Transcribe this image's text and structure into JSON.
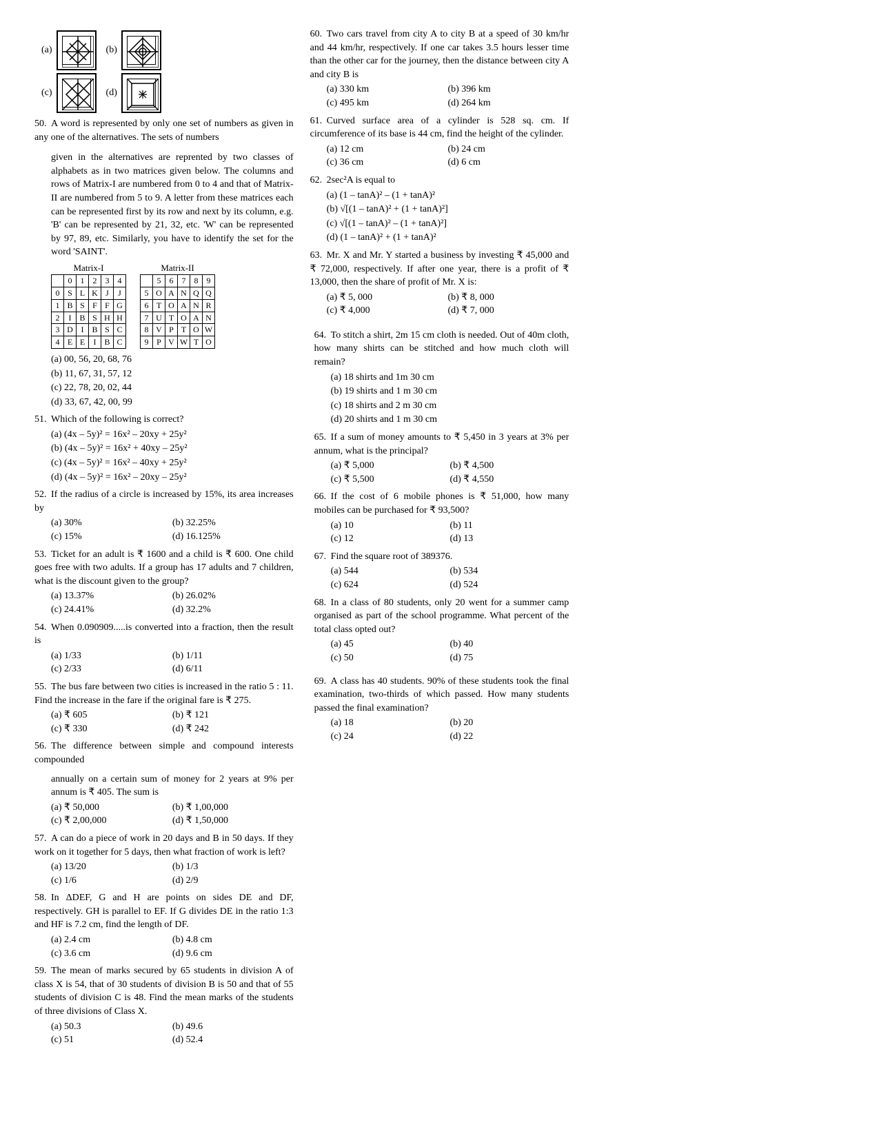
{
  "q_images": {
    "labels": [
      "(a)",
      "(b)",
      "(c)",
      "(d)"
    ]
  },
  "q50": {
    "num": "50.",
    "text1": "A word is represented by only one set of numbers as given in any one of the alternatives. The sets of numbers",
    "text2": "given in the alternatives are reprented by two classes of alphabets as in two matrices given below. The columns and rows of Matrix-I are numbered from 0 to 4 and that of Matrix-II are numbered from 5 to 9. A letter from these matrices each can be represented first by its row and next by its column, e.g. 'B' can be represented by 21, 32, etc. 'W' can be represented by 97, 89, etc. Similarly, you have to identify the set for the word 'SAINT'.",
    "m1_label": "Matrix-I",
    "m2_label": "Matrix-II",
    "m1": {
      "cols": [
        "0",
        "1",
        "2",
        "3",
        "4"
      ],
      "rows": [
        [
          "0",
          "S",
          "L",
          "K",
          "J",
          "J"
        ],
        [
          "1",
          "B",
          "S",
          "F",
          "F",
          "G"
        ],
        [
          "2",
          "I",
          "B",
          "S",
          "H",
          "H"
        ],
        [
          "3",
          "D",
          "I",
          "B",
          "S",
          "C"
        ],
        [
          "4",
          "E",
          "E",
          "I",
          "B",
          "C"
        ]
      ]
    },
    "m2": {
      "cols": [
        "5",
        "6",
        "7",
        "8",
        "9"
      ],
      "rows": [
        [
          "5",
          "O",
          "A",
          "N",
          "Q",
          "Q"
        ],
        [
          "6",
          "T",
          "O",
          "A",
          "N",
          "R"
        ],
        [
          "7",
          "U",
          "T",
          "O",
          "A",
          "N"
        ],
        [
          "8",
          "V",
          "P",
          "T",
          "O",
          "W"
        ],
        [
          "9",
          "P",
          "V",
          "W",
          "T",
          "O"
        ]
      ]
    },
    "opts": [
      "(a) 00, 56, 20, 68, 76",
      "(b) 11, 67, 31, 57, 12",
      "(c) 22, 78, 20, 02, 44",
      "(d) 33, 67, 42, 00, 99"
    ]
  },
  "q51": {
    "num": "51.",
    "text": "Which of the following is correct?",
    "opts": [
      "(a) (4x – 5y)² = 16x² – 20xy + 25y²",
      "(b) (4x – 5y)² = 16x² + 40xy – 25y²",
      "(c) (4x – 5y)² = 16x² – 40xy + 25y²",
      "(d) (4x – 5y)² = 16x² – 20xy – 25y²"
    ]
  },
  "q52": {
    "num": "52.",
    "text": "If the radius of a circle is increased by 15%, its area increases by",
    "a": "(a) 30%",
    "b": "(b) 32.25%",
    "c": "(c) 15%",
    "d": "(d) 16.125%"
  },
  "q53": {
    "num": "53.",
    "text": "Ticket for an adult is  ₹ 1600 and a child is ₹ 600. One child goes free with two adults. If a group has 17 adults and 7 children, what is the discount given  to the group?",
    "a": "(a) 13.37%",
    "b": "(b) 26.02%",
    "c": "(c) 24.41%",
    "d": "(d) 32.2%"
  },
  "q54": {
    "num": "54.",
    "text": "When 0.090909.....is converted into a fraction, then the result is",
    "a": "(a) 1/33",
    "b": "(b) 1/11",
    "c": "(c) 2/33",
    "d": "(d) 6/11"
  },
  "q55": {
    "num": "55.",
    "text": "The bus fare between two cities is increased in the ratio 5 : 11. Find the increase in the fare if the original fare is   ₹ 275.",
    "a": "(a) ₹ 605",
    "b": "(b) ₹ 121",
    "c": "(c) ₹ 330",
    "d": "(d) ₹ 242"
  },
  "q56": {
    "num": "56.",
    "text1": "The difference between simple and compound interests compounded",
    "text2": "annually on a certain sum of money for 2 years at 9% per annum is ₹ 405. The sum is",
    "a": "(a) ₹ 50,000",
    "b": "(b) ₹ 1,00,000",
    "c": "(c) ₹ 2,00,000",
    "d": "(d) ₹ 1,50,000"
  },
  "q57": {
    "num": "57.",
    "text": "A can do a piece of work in 20 days and B in 50 days. If they work on it together for 5 days, then what fraction of work is left?",
    "a": "(a) 13/20",
    "b": "(b) 1/3",
    "c": "(c) 1/6",
    "d": "(d) 2/9"
  },
  "q58": {
    "num": "58.",
    "text": "In ΔDEF, G and H are points on sides DE and DF, respectively. GH is parallel to EF. If G divides DE in the ratio 1:3 and HF is 7.2 cm, find the length of DF.",
    "a": "(a) 2.4 cm",
    "b": "(b) 4.8 cm",
    "c": "(c) 3.6 cm",
    "d": "(d) 9.6 cm"
  },
  "q59": {
    "num": "59.",
    "text": "The mean of marks secured by 65 students in division A of class X is 54, that of 30 students of division B is 50 and that of 55 students of division C is 48. Find the mean marks of the students of three divisions of Class X.",
    "a": "(a) 50.3",
    "b": "(b) 49.6",
    "c": "(c) 51",
    "d": "(d) 52.4"
  },
  "q60": {
    "num": "60.",
    "text": "Two cars travel from city A to city B at a speed of 30 km/hr and 44 km/hr, respectively. If one car takes 3.5 hours lesser time than the other car for the journey, then the distance between city A and city B is",
    "a": "(a) 330 km",
    "b": "(b) 396 km",
    "c": "(c) 495 km",
    "d": "(d) 264 km"
  },
  "q61": {
    "num": "61.",
    "text": "Curved surface area of a cylinder is 528 sq. cm. If circumference of its base is 44 cm, find the height of the cylinder.",
    "a": "(a) 12 cm",
    "b": "(b) 24 cm",
    "c": "(c) 36 cm",
    "d": "(d) 6 cm"
  },
  "q62": {
    "num": "62.",
    "text": "2sec²A is equal to",
    "opts": [
      "(a) (1 – tanA)² – (1 + tanA)²",
      "(b) √[(1 – tanA)² + (1 + tanA)²]",
      "(c) √[(1 – tanA)² – (1 + tanA)²]",
      "(d) (1 – tanA)² + (1 + tanA)²"
    ]
  },
  "q63": {
    "num": "63.",
    "text": "Mr. X and Mr. Y started a business by investing ₹ 45,000 and ₹ 72,000, respectively. If after one year, there is a profit of    ₹ 13,000, then the share of profit of Mr. X is:",
    "a": "(a) ₹ 5, 000",
    "b": "(b) ₹ 8, 000",
    "c": "(c) ₹ 4,000",
    "d": "(d) ₹ 7, 000"
  },
  "q64": {
    "num": "64.",
    "text": "To stitch a shirt, 2m 15 cm cloth is needed. Out of 40m cloth, how many shirts can be stitched and how much cloth will remain?",
    "opts": [
      "(a) 18 shirts and 1m 30 cm",
      "(b) 19 shirts and 1 m 30 cm",
      "(c) 18 shirts and 2 m 30 cm",
      "(d) 20 shirts and 1 m 30 cm"
    ]
  },
  "q65": {
    "num": "65.",
    "text": "If a sum of money amounts to ₹ 5,450 in 3 years at 3% per annum, what is the principal?",
    "a": "(a) ₹ 5,000",
    "b": "(b) ₹ 4,500",
    "c": "(c) ₹ 5,500",
    "d": "(d) ₹ 4,550"
  },
  "q66": {
    "num": "66.",
    "text": "If the cost of 6 mobile phones is ₹ 51,000, how many mobiles can be purchased for  ₹ 93,500?",
    "a": "(a) 10",
    "b": "(b) 11",
    "c": "(c) 12",
    "d": "(d) 13"
  },
  "q67": {
    "num": "67.",
    "text": "Find the square root of 389376.",
    "a": "(a) 544",
    "b": "(b) 534",
    "c": "(c) 624",
    "d": "(d) 524"
  },
  "q68": {
    "num": "68.",
    "text": "In a class of 80 students, only 20 went for a summer camp organised as part of the school programme. What percent of the total class opted out?",
    "a": "(a) 45",
    "b": "(b) 40",
    "c": "(c) 50",
    "d": "(d) 75"
  },
  "q69": {
    "num": "69.",
    "text": "A class has 40 students. 90% of these students took the final examination, two-thirds of which passed. How many students passed the final examination?",
    "a": "(a) 18",
    "b": "(b) 20",
    "c": "(c) 24",
    "d": "(d) 22"
  }
}
